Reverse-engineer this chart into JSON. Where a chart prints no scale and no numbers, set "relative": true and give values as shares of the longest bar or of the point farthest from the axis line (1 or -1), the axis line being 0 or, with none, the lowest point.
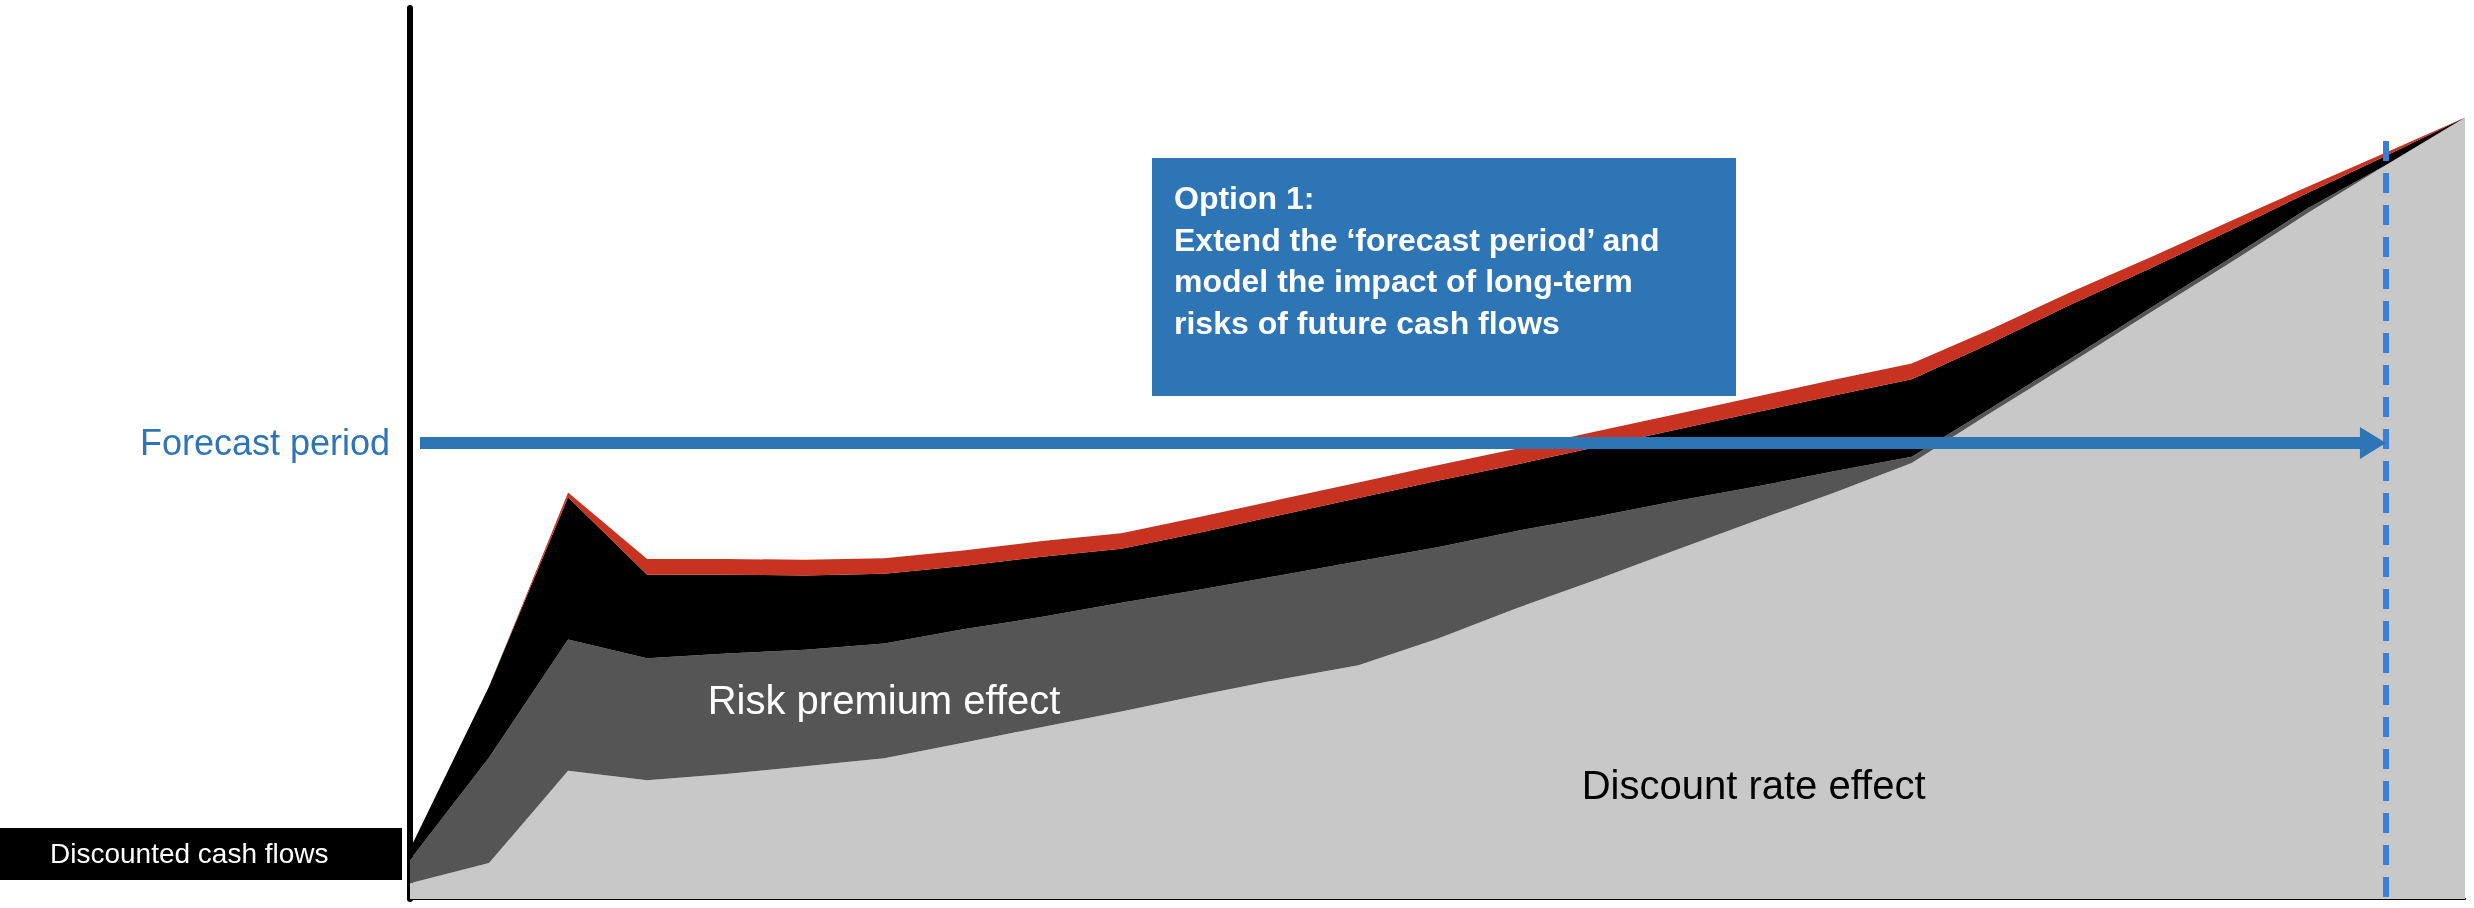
{
  "chart_data": {
    "type": "area",
    "relative": true,
    "stacked": true,
    "marker": "none",
    "legend": false,
    "grid": false,
    "categories": [
      null,
      null,
      null,
      null,
      null,
      null,
      null,
      null,
      null,
      null,
      null,
      null,
      null,
      null,
      null,
      null,
      null,
      null,
      null,
      null,
      null,
      null,
      null,
      null,
      null,
      null,
      null
    ],
    "series": [
      {
        "name": "Discount rate effect",
        "color": "#c8c8c8",
        "values": [
          0.02,
          0.046,
          0.164,
          0.152,
          0.16,
          0.17,
          0.18,
          0.2,
          0.22,
          0.24,
          0.261,
          0.281,
          0.299,
          0.333,
          0.372,
          0.408,
          0.446,
          0.483,
          0.519,
          0.558,
          0.622,
          0.685,
          0.749,
          0.812,
          0.877,
          0.939,
          1
        ]
      },
      {
        "name": "Risk premium effect",
        "color": "#555555",
        "values": [
          0.03,
          0.135,
          0.168,
          0.156,
          0.154,
          0.149,
          0.147,
          0.145,
          0.141,
          0.139,
          0.135,
          0.133,
          0.133,
          0.117,
          0.099,
          0.081,
          0.063,
          0.044,
          0.028,
          0.008,
          0.006,
          0.006,
          0.006,
          0.006,
          0.006,
          0,
          0
        ]
      },
      {
        "name": "Discounted cash flows",
        "color": "#000000",
        "values": [
          0.014,
          0.091,
          0.182,
          0.107,
          0.101,
          0.095,
          0.089,
          0.081,
          0.077,
          0.069,
          0.073,
          0.077,
          0.081,
          0.085,
          0.085,
          0.089,
          0.091,
          0.095,
          0.097,
          0.099,
          0.083,
          0.069,
          0.051,
          0.036,
          0.02,
          0.012,
          0
        ]
      },
      {
        "color": "#c83220",
        "values": [
          0,
          0,
          0.006,
          0.02,
          0.02,
          0.02,
          0.02,
          0.02,
          0.02,
          0.02,
          0.02,
          0.02,
          0.02,
          0.02,
          0.02,
          0.02,
          0.02,
          0.02,
          0.02,
          0.02,
          0.018,
          0.016,
          0.014,
          0.012,
          0.008,
          0.004,
          0
        ]
      }
    ],
    "annotations": [
      "Forecast period",
      "Option 1:",
      "Extend the ‘forecast period’ and model the impact of long-term risks of future cash flows"
    ]
  }
}
